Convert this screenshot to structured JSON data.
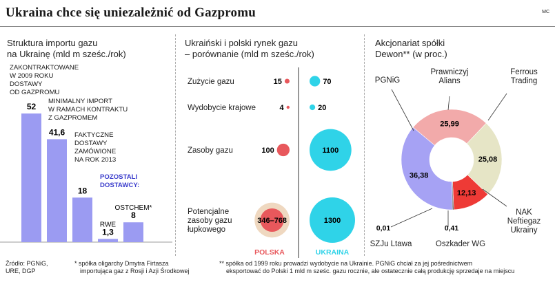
{
  "header": {
    "title": "Ukraina chce się uniezależnić od Gazpromu",
    "credit": "MC"
  },
  "panel1": {
    "title_line1": "Struktura importu gazu",
    "title_line2": "na Ukrainę (mld m sześc./rok)",
    "annotations": {
      "contracted": [
        "ZAKONTRAKTOWANE",
        "W 2009 ROKU",
        "DOSTAWY",
        "OD GAZPROMU"
      ],
      "minimal": [
        "MINIMALNY IMPORT",
        "W RAMACH KONTRAKTU",
        "Z GAZPROMEM"
      ],
      "actual": [
        "FAKTYCZNE",
        "DOSTAWY",
        "ZAMÓWIONE",
        "NA ROK 2013"
      ],
      "others": [
        "POZOSTALI",
        "DOSTAWCY:"
      ]
    }
  },
  "panel2": {
    "title_line1": "Ukraiński i polski rynek gazu",
    "title_line2": "– porównanie (mld m sześc./rok)"
  },
  "panel3": {
    "title_line1": "Akcjonariat spółki",
    "title_line2": "Dewon** (w proc.)"
  },
  "footer": {
    "source": [
      "Źródło: PGNiG,",
      "URE, DGP"
    ],
    "note1": [
      "* spółka oligarchy Dmytra Firtasza",
      "importująca gaz z Rosji i Azji Środkowej"
    ],
    "note2": [
      "** spółka od 1999 roku prowadzi wydobycie na Ukrainie. PGNiG chciał za jej pośrednictwem",
      "eksportować do Polski 1 mld m sześc. gazu rocznie, ale ostatecznie całą produkcję sprzedaje na miejscu"
    ]
  },
  "colors": {
    "bar": "#9b9bf2",
    "poland": "#e8585c",
    "poland_halo": "#efd8c0",
    "ukraine": "#2fd3e8",
    "pgnig": "#a6a2f4",
    "prawniczyj": "#f2aaaa",
    "ferrous": "#e6e5c6",
    "nak": "#ee3a36",
    "other": "#444444",
    "others_label": "#3b3dcc"
  },
  "chart_data": [
    {
      "type": "bar",
      "categories": [
        "Zakontraktowane",
        "Minimalny import",
        "Faktyczne dostawy",
        "RWE",
        "OSTCHEM*"
      ],
      "bar_labels": [
        "",
        "",
        "",
        "RWE",
        "OSTCHEM*"
      ],
      "values": [
        52,
        41.6,
        18,
        1.3,
        8
      ],
      "value_labels": [
        "52",
        "41,6",
        "18",
        "1,3",
        "8"
      ],
      "ylim": [
        0,
        60
      ]
    },
    {
      "type": "scatter",
      "categories": [
        "Zużycie gazu",
        "Wydobycie krajowe",
        "Zasoby gazu",
        "Potencjalne zasoby gazu łupkowego"
      ],
      "category_lines": [
        [
          "Zużycie gazu"
        ],
        [
          "Wydobycie krajowe"
        ],
        [
          "Zasoby gazu"
        ],
        [
          "Potencjalne",
          "zasoby gazu",
          "łupkowego"
        ]
      ],
      "series": [
        {
          "name": "POLSKA",
          "values": [
            15,
            4,
            100,
            768
          ],
          "value_labels": [
            "15",
            "4",
            "100",
            "346–768"
          ],
          "range_low": 346
        },
        {
          "name": "UKRAINA",
          "values": [
            70,
            20,
            1100,
            1300
          ],
          "value_labels": [
            "70",
            "20",
            "1100",
            "1300"
          ]
        }
      ]
    },
    {
      "type": "pie",
      "labels": [
        "Prawniczyj Alians",
        "Ferrous Trading",
        "NAK Neftiegaz Ukrainy",
        "Oszkader WG",
        "SZJu Ltawa",
        "PGNiG"
      ],
      "label_lines": [
        [
          "Prawniczyj",
          "Alians"
        ],
        [
          "Ferrous",
          "Trading"
        ],
        [
          "NAK",
          "Neftiegaz",
          "Ukrainy"
        ],
        [
          "Oszkader WG"
        ],
        [
          "SZJu Ltawa"
        ],
        [
          "PGNiG"
        ]
      ],
      "values": [
        25.99,
        25.08,
        12.13,
        0.41,
        0.01,
        36.38
      ],
      "value_labels": [
        "25,99",
        "25,08",
        "12,13",
        "0,41",
        "0,01",
        "36,38"
      ]
    }
  ]
}
